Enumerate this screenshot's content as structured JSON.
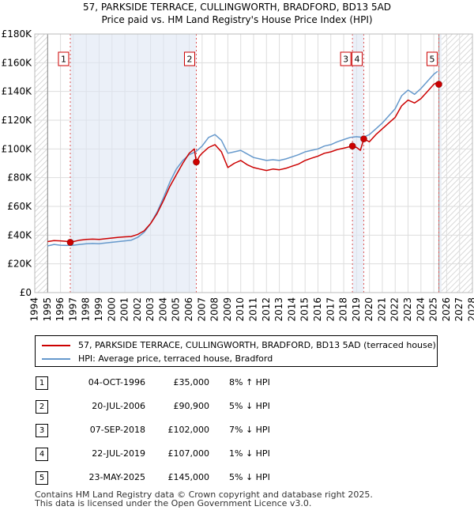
{
  "title_line1": "57, PARKSIDE TERRACE, CULLINGWORTH, BRADFORD, BD13 5AD",
  "title_line2": "Price paid vs. HM Land Registry's House Price Index (HPI)",
  "chart_data": {
    "type": "line",
    "ylim": [
      0,
      180000
    ],
    "xlim": [
      1994,
      2028
    ],
    "y_ticks": [
      {
        "value": 0,
        "label": "£0"
      },
      {
        "value": 20000,
        "label": "£20K"
      },
      {
        "value": 40000,
        "label": "£40K"
      },
      {
        "value": 60000,
        "label": "£60K"
      },
      {
        "value": 80000,
        "label": "£80K"
      },
      {
        "value": 100000,
        "label": "£100K"
      },
      {
        "value": 120000,
        "label": "£120K"
      },
      {
        "value": 140000,
        "label": "£140K"
      },
      {
        "value": 160000,
        "label": "£160K"
      },
      {
        "value": 180000,
        "label": "£180K"
      }
    ],
    "x_ticks": [
      "1994",
      "1995",
      "1996",
      "1997",
      "1998",
      "1999",
      "2000",
      "2001",
      "2002",
      "2003",
      "2004",
      "2005",
      "2006",
      "2007",
      "2008",
      "2009",
      "2010",
      "2011",
      "2012",
      "2013",
      "2014",
      "2015",
      "2016",
      "2017",
      "2018",
      "2019",
      "2020",
      "2021",
      "2022",
      "2023",
      "2024",
      "2025",
      "2026",
      "2027",
      "2028"
    ],
    "data_start": 1995.0,
    "data_end": 2025.4,
    "shaded_ranges": [
      [
        1996.76,
        2006.55
      ],
      [
        2018.68,
        2019.56
      ],
      [
        2025.39,
        2025.6
      ]
    ],
    "hatched_ranges": [
      [
        1994.0,
        1995.0
      ],
      [
        2025.6,
        2028.0
      ]
    ],
    "series": [
      {
        "name": "57, PARKSIDE TERRACE, CULLINGWORTH, BRADFORD, BD13 5AD (terraced house)",
        "color": "#cc0000",
        "points": [
          [
            1995.0,
            35500
          ],
          [
            1995.5,
            36200
          ],
          [
            1996.0,
            36000
          ],
          [
            1996.5,
            35600
          ],
          [
            1996.76,
            35000
          ],
          [
            1997.0,
            35500
          ],
          [
            1997.5,
            36500
          ],
          [
            1998.0,
            37000
          ],
          [
            1998.5,
            37200
          ],
          [
            1999.0,
            37000
          ],
          [
            1999.5,
            37500
          ],
          [
            2000.0,
            38000
          ],
          [
            2000.5,
            38500
          ],
          [
            2001.0,
            38800
          ],
          [
            2001.5,
            39000
          ],
          [
            2002.0,
            40500
          ],
          [
            2002.5,
            43000
          ],
          [
            2003.0,
            48000
          ],
          [
            2003.5,
            55000
          ],
          [
            2004.0,
            64000
          ],
          [
            2004.5,
            74000
          ],
          [
            2005.0,
            82000
          ],
          [
            2005.5,
            90000
          ],
          [
            2006.0,
            97000
          ],
          [
            2006.4,
            100000
          ],
          [
            2006.55,
            90900
          ],
          [
            2006.8,
            95000
          ],
          [
            2007.0,
            97000
          ],
          [
            2007.5,
            101000
          ],
          [
            2008.0,
            103000
          ],
          [
            2008.5,
            98000
          ],
          [
            2009.0,
            87000
          ],
          [
            2009.5,
            90000
          ],
          [
            2010.0,
            92000
          ],
          [
            2010.5,
            89000
          ],
          [
            2011.0,
            87000
          ],
          [
            2011.5,
            86000
          ],
          [
            2012.0,
            85000
          ],
          [
            2012.5,
            86000
          ],
          [
            2013.0,
            85500
          ],
          [
            2013.5,
            86500
          ],
          [
            2014.0,
            88000
          ],
          [
            2014.5,
            89500
          ],
          [
            2015.0,
            92000
          ],
          [
            2015.5,
            93500
          ],
          [
            2016.0,
            95000
          ],
          [
            2016.5,
            97000
          ],
          [
            2017.0,
            98000
          ],
          [
            2017.5,
            99500
          ],
          [
            2018.0,
            100500
          ],
          [
            2018.68,
            102000
          ],
          [
            2019.0,
            101000
          ],
          [
            2019.3,
            99000
          ],
          [
            2019.56,
            107000
          ],
          [
            2020.0,
            105000
          ],
          [
            2020.5,
            110000
          ],
          [
            2021.0,
            114000
          ],
          [
            2021.5,
            118000
          ],
          [
            2022.0,
            122000
          ],
          [
            2022.5,
            130000
          ],
          [
            2023.0,
            134000
          ],
          [
            2023.5,
            132000
          ],
          [
            2024.0,
            135000
          ],
          [
            2024.5,
            140000
          ],
          [
            2025.0,
            145000
          ],
          [
            2025.2,
            146000
          ],
          [
            2025.39,
            145000
          ]
        ]
      },
      {
        "name": "HPI: Average price, terraced house, Bradford",
        "color": "#6699cc",
        "points": [
          [
            1995.0,
            32500
          ],
          [
            1995.5,
            33500
          ],
          [
            1996.0,
            33000
          ],
          [
            1996.5,
            32800
          ],
          [
            1997.0,
            33000
          ],
          [
            1997.5,
            33500
          ],
          [
            1998.0,
            34000
          ],
          [
            1998.5,
            34200
          ],
          [
            1999.0,
            34000
          ],
          [
            1999.5,
            34500
          ],
          [
            2000.0,
            35000
          ],
          [
            2000.5,
            35500
          ],
          [
            2001.0,
            36000
          ],
          [
            2001.5,
            36500
          ],
          [
            2002.0,
            38500
          ],
          [
            2002.5,
            42000
          ],
          [
            2003.0,
            48000
          ],
          [
            2003.5,
            56000
          ],
          [
            2004.0,
            66000
          ],
          [
            2004.5,
            77000
          ],
          [
            2005.0,
            86000
          ],
          [
            2005.5,
            92000
          ],
          [
            2006.0,
            96000
          ],
          [
            2006.5,
            98000
          ],
          [
            2007.0,
            102000
          ],
          [
            2007.5,
            108000
          ],
          [
            2008.0,
            110000
          ],
          [
            2008.5,
            106000
          ],
          [
            2009.0,
            97000
          ],
          [
            2009.5,
            98000
          ],
          [
            2010.0,
            99000
          ],
          [
            2010.5,
            96500
          ],
          [
            2011.0,
            94000
          ],
          [
            2011.5,
            93000
          ],
          [
            2012.0,
            92000
          ],
          [
            2012.5,
            92500
          ],
          [
            2013.0,
            92000
          ],
          [
            2013.5,
            93000
          ],
          [
            2014.0,
            94500
          ],
          [
            2014.5,
            96000
          ],
          [
            2015.0,
            98000
          ],
          [
            2015.5,
            99000
          ],
          [
            2016.0,
            100000
          ],
          [
            2016.5,
            102000
          ],
          [
            2017.0,
            103000
          ],
          [
            2017.5,
            105000
          ],
          [
            2018.0,
            106500
          ],
          [
            2018.5,
            108000
          ],
          [
            2019.0,
            108500
          ],
          [
            2019.5,
            108000
          ],
          [
            2020.0,
            110000
          ],
          [
            2020.5,
            114000
          ],
          [
            2021.0,
            118000
          ],
          [
            2021.5,
            123000
          ],
          [
            2022.0,
            128000
          ],
          [
            2022.5,
            137000
          ],
          [
            2023.0,
            141000
          ],
          [
            2023.5,
            138000
          ],
          [
            2024.0,
            142000
          ],
          [
            2024.5,
            147000
          ],
          [
            2025.0,
            152000
          ],
          [
            2025.3,
            154000
          ]
        ]
      }
    ],
    "sale_points": [
      {
        "label": "1",
        "x": 1996.76,
        "y": 35000
      },
      {
        "label": "2",
        "x": 2006.55,
        "y": 90900
      },
      {
        "label": "3",
        "x": 2018.68,
        "y": 102000
      },
      {
        "label": "4",
        "x": 2019.56,
        "y": 107000
      },
      {
        "label": "5",
        "x": 2025.39,
        "y": 145000
      }
    ]
  },
  "legend": {
    "property": "57, PARKSIDE TERRACE, CULLINGWORTH, BRADFORD, BD13 5AD (terraced house)",
    "hpi": "HPI: Average price, terraced house, Bradford",
    "property_color": "#cc0000",
    "hpi_color": "#6699cc"
  },
  "sales": [
    {
      "num": "1",
      "date": "04-OCT-1996",
      "price": "£35,000",
      "hpi": "8% ↑ HPI"
    },
    {
      "num": "2",
      "date": "20-JUL-2006",
      "price": "£90,900",
      "hpi": "5% ↓ HPI"
    },
    {
      "num": "3",
      "date": "07-SEP-2018",
      "price": "£102,000",
      "hpi": "7% ↓ HPI"
    },
    {
      "num": "4",
      "date": "22-JUL-2019",
      "price": "£107,000",
      "hpi": "1% ↓ HPI"
    },
    {
      "num": "5",
      "date": "23-MAY-2025",
      "price": "£145,000",
      "hpi": "5% ↓ HPI"
    }
  ],
  "footer_line1": "Contains HM Land Registry data © Crown copyright and database right 2025.",
  "footer_line2": "This data is licensed under the Open Government Licence v3.0."
}
